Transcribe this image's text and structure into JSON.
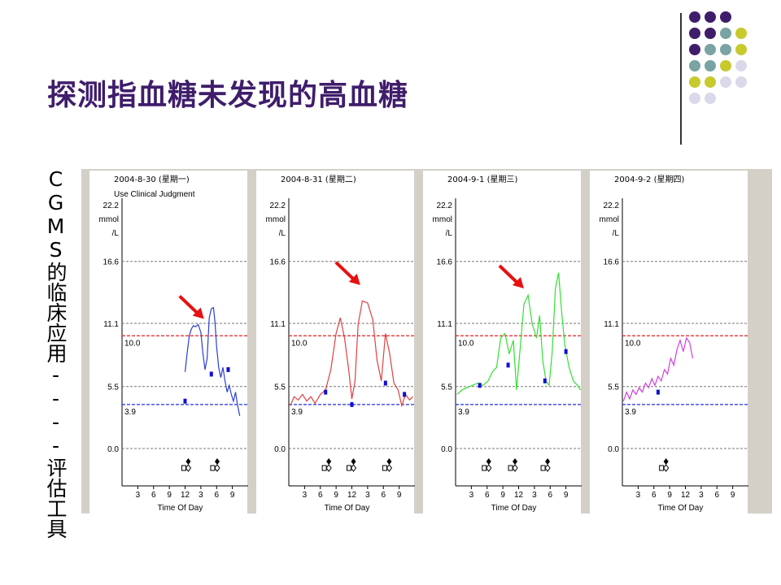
{
  "slide": {
    "title": "探测指血糖未发现的高血糖",
    "side_label": "CGMS的临床应用----评估工具"
  },
  "decor": {
    "dot_colors": [
      "#3f1d6b",
      "#7aa3a3",
      "#c7c92d",
      "#d9d9ea"
    ],
    "dot_grid": [
      [
        0,
        0,
        0,
        null
      ],
      [
        0,
        0,
        1,
        2
      ],
      [
        0,
        1,
        1,
        2
      ],
      [
        1,
        1,
        2,
        3
      ],
      [
        2,
        2,
        3,
        3
      ],
      [
        3,
        3,
        null,
        null
      ]
    ]
  },
  "chart_data": [
    {
      "type": "line",
      "date_label": "2004-8-30 (星期一)",
      "subtitle": "Use Clinical Judgment",
      "color": "#2a3fd6",
      "unit_label": [
        "22.2",
        "mmol",
        "/L"
      ],
      "yticks": [
        "16.6",
        "11.1",
        "5.5",
        "0.0"
      ],
      "thresholds": [
        {
          "value": 10.0,
          "label": "10.0",
          "color": "#e02020"
        },
        {
          "value": 3.9,
          "label": "3.9",
          "color": "#2030e0"
        }
      ],
      "xticks": [
        "3",
        "6",
        "9",
        "12",
        "3",
        "6",
        "9"
      ],
      "xlabel": "Time Of Day",
      "ylim": [
        0,
        22.2
      ],
      "xlim": [
        0,
        24
      ],
      "series": {
        "x": [
          12.0,
          12.4,
          12.8,
          13.2,
          13.6,
          14.0,
          14.5,
          15.0,
          15.4,
          15.8,
          16.2,
          16.6,
          17.0,
          17.4,
          17.7,
          18.0,
          18.4,
          18.8,
          19.2,
          19.6,
          20.0,
          20.4,
          20.8,
          21.2,
          21.6,
          22.0,
          22.4
        ],
        "y": [
          6.8,
          8.5,
          10.0,
          10.6,
          10.9,
          10.8,
          11.0,
          10.3,
          8.4,
          7.0,
          8.0,
          11.6,
          12.4,
          12.5,
          11.2,
          9.0,
          7.2,
          6.3,
          7.2,
          6.0,
          5.0,
          5.6,
          4.8,
          4.2,
          5.0,
          3.8,
          2.9
        ]
      },
      "fingersticks": [
        {
          "x": 12.0,
          "y": 4.2
        },
        {
          "x": 17.0,
          "y": 6.6
        },
        {
          "x": 20.2,
          "y": 7.0
        }
      ],
      "markers": [
        {
          "x": 12.3
        },
        {
          "x": 17.8
        }
      ],
      "arrow": {
        "x": 15.6,
        "y": 11.5
      }
    },
    {
      "type": "line",
      "date_label": "2004-8-31 (星期二)",
      "subtitle": "",
      "color": "#e04040",
      "unit_label": [
        "22.2",
        "mmol",
        "/L"
      ],
      "yticks": [
        "16.6",
        "11.1",
        "5.5",
        "0.0"
      ],
      "thresholds": [
        {
          "value": 10.0,
          "label": "10.0",
          "color": "#e02020"
        },
        {
          "value": 3.9,
          "label": "3.9",
          "color": "#2030e0"
        }
      ],
      "xticks": [
        "3",
        "6",
        "9",
        "12",
        "3",
        "6",
        "9"
      ],
      "xlabel": "Time Of Day",
      "ylim": [
        0,
        22.2
      ],
      "xlim": [
        0,
        24
      ],
      "series": {
        "x": [
          0.3,
          1.0,
          1.8,
          2.6,
          3.4,
          4.2,
          5.0,
          6.0,
          7.0,
          8.0,
          9.0,
          9.8,
          10.6,
          11.4,
          12.0,
          12.6,
          13.2,
          14.0,
          15.0,
          16.0,
          16.8,
          17.6,
          18.4,
          19.2,
          20.0,
          20.8,
          21.5,
          22.2,
          23.0,
          23.6
        ],
        "y": [
          3.8,
          4.6,
          4.3,
          4.8,
          4.2,
          4.6,
          4.0,
          4.8,
          5.2,
          7.0,
          10.2,
          11.6,
          9.8,
          7.0,
          4.4,
          6.0,
          11.0,
          13.1,
          12.9,
          11.4,
          7.8,
          6.0,
          10.2,
          8.4,
          5.8,
          5.2,
          3.8,
          4.8,
          4.3,
          4.6
        ]
      },
      "fingersticks": [
        {
          "x": 7.0,
          "y": 5.0
        },
        {
          "x": 12.0,
          "y": 3.9
        },
        {
          "x": 18.4,
          "y": 5.8
        },
        {
          "x": 22.0,
          "y": 4.8
        }
      ],
      "markers": [
        {
          "x": 7.3
        },
        {
          "x": 12.0
        },
        {
          "x": 18.8
        }
      ],
      "arrow": {
        "x": 13.6,
        "y": 14.5
      }
    },
    {
      "type": "line",
      "date_label": "2004-9-1 (星期三)",
      "subtitle": "",
      "color": "#33e033",
      "unit_label": [
        "22.2",
        "mmol",
        "/L"
      ],
      "yticks": [
        "16.6",
        "11.1",
        "5.5",
        "0.0"
      ],
      "thresholds": [
        {
          "value": 10.0,
          "label": "10.0",
          "color": "#e02020"
        },
        {
          "value": 3.9,
          "label": "3.9",
          "color": "#2030e0"
        }
      ],
      "xticks": [
        "3",
        "6",
        "9",
        "12",
        "3",
        "6",
        "9"
      ],
      "xlabel": "Time Of Day",
      "ylim": [
        0,
        22.2
      ],
      "xlim": [
        0,
        24
      ],
      "series": {
        "x": [
          0.3,
          1.2,
          2.2,
          3.2,
          4.2,
          5.2,
          6.2,
          7.0,
          7.8,
          8.6,
          9.4,
          10.2,
          11.0,
          11.6,
          12.2,
          13.0,
          13.8,
          14.6,
          15.4,
          16.0,
          16.6,
          17.2,
          17.8,
          18.4,
          19.0,
          19.6,
          20.2,
          20.8,
          21.6,
          22.4,
          23.2,
          23.8
        ],
        "y": [
          4.8,
          5.2,
          5.4,
          5.6,
          5.8,
          5.6,
          6.0,
          6.8,
          7.2,
          9.8,
          10.2,
          8.4,
          9.6,
          5.2,
          8.4,
          12.8,
          13.6,
          11.0,
          9.8,
          11.8,
          7.8,
          6.0,
          5.6,
          8.6,
          14.2,
          15.6,
          12.0,
          9.2,
          7.2,
          6.0,
          5.6,
          5.2
        ]
      },
      "fingersticks": [
        {
          "x": 4.6,
          "y": 5.6
        },
        {
          "x": 10.0,
          "y": 7.4
        },
        {
          "x": 17.0,
          "y": 6.0
        },
        {
          "x": 21.0,
          "y": 8.6
        }
      ],
      "markers": [
        {
          "x": 6.0
        },
        {
          "x": 11.0
        },
        {
          "x": 17.2
        }
      ],
      "arrow": {
        "x": 13.0,
        "y": 14.2
      }
    },
    {
      "type": "line",
      "date_label": "2004-9-2 (星期四)",
      "subtitle": "",
      "color": "#d040e0",
      "unit_label": [
        "22.2",
        "mmol",
        "/L"
      ],
      "yticks": [
        "16.6",
        "11.1",
        "5.5",
        "0.0"
      ],
      "thresholds": [
        {
          "value": 10.0,
          "label": "10.0",
          "color": "#e02020"
        },
        {
          "value": 3.9,
          "label": "3.9",
          "color": "#2030e0"
        }
      ],
      "xticks": [
        "3",
        "6",
        "9",
        "12",
        "3",
        "6",
        "9"
      ],
      "xlabel": "Time Of Day",
      "ylim": [
        0,
        22.2
      ],
      "xlim": [
        0,
        24
      ],
      "series": {
        "x": [
          0.2,
          0.8,
          1.4,
          2.0,
          2.6,
          3.2,
          3.8,
          4.4,
          5.0,
          5.6,
          6.2,
          6.8,
          7.4,
          8.0,
          8.6,
          9.2,
          9.8,
          10.4,
          11.0,
          11.6,
          12.2,
          12.8,
          13.4
        ],
        "y": [
          4.2,
          5.0,
          4.4,
          5.2,
          4.8,
          5.4,
          5.0,
          5.8,
          5.4,
          6.2,
          5.6,
          6.4,
          6.0,
          7.0,
          6.6,
          8.0,
          7.4,
          8.8,
          9.6,
          8.6,
          9.8,
          9.4,
          8.0
        ]
      },
      "fingersticks": [
        {
          "x": 6.8,
          "y": 5.0
        }
      ],
      "markers": [
        {
          "x": 8.0
        }
      ],
      "arrow": null
    }
  ]
}
